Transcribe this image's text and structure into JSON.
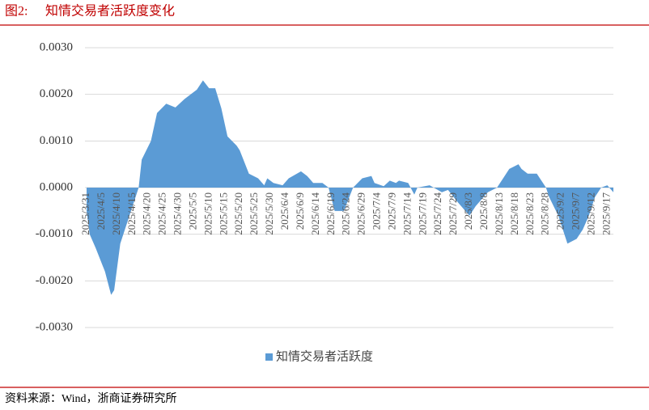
{
  "figure_label": "图2:",
  "source": "资料来源：Wind，浙商证券研究所",
  "chart_data": {
    "type": "area",
    "title": "知情交易者活跃度变化",
    "x": [
      "2025/3/31",
      "2025/4/1",
      "2025/4/3",
      "2025/4/6",
      "2025/4/8",
      "2025/4/9",
      "2025/4/11",
      "2025/4/14",
      "2025/4/17",
      "2025/4/18",
      "2025/4/21",
      "2025/4/23",
      "2025/4/26",
      "2025/4/29",
      "2025/5/2",
      "2025/5/6",
      "2025/5/8",
      "2025/5/10",
      "2025/5/12",
      "2025/5/14",
      "2025/5/16",
      "2025/5/19",
      "2025/5/20",
      "2025/5/23",
      "2025/5/26",
      "2025/5/28",
      "2025/5/29",
      "2025/5/31",
      "2025/6/3",
      "2025/6/5",
      "2025/6/9",
      "2025/6/11",
      "2025/6/13",
      "2025/6/16",
      "2025/6/18",
      "2025/6/20",
      "2025/6/23",
      "2025/6/26",
      "2025/6/29",
      "2025/7/2",
      "2025/7/3",
      "2025/7/6",
      "2025/7/8",
      "2025/7/10",
      "2025/7/11",
      "2025/7/14",
      "2025/7/16",
      "2025/7/17",
      "2025/7/21",
      "2025/7/25",
      "2025/7/27",
      "2025/7/30",
      "2025/8/3",
      "2025/8/5",
      "2025/8/9",
      "2025/8/12",
      "2025/8/14",
      "2025/8/16",
      "2025/8/19",
      "2025/8/20",
      "2025/8/22",
      "2025/8/25",
      "2025/8/27",
      "2025/8/28",
      "2025/8/29",
      "2025/9/1",
      "2025/9/4",
      "2025/9/7",
      "2025/9/9",
      "2025/9/11",
      "2025/9/13",
      "2025/9/15",
      "2025/9/17",
      "2025/9/19"
    ],
    "series": [
      {
        "name": "知情交易者活跃度",
        "color": "#5b9bd5",
        "values": [
          -0.0005,
          -0.001,
          -0.0013,
          -0.0018,
          -0.0023,
          -0.0022,
          -0.0012,
          -0.0006,
          0,
          0.0006,
          0.001,
          0.0016,
          0.0018,
          0.00172,
          0.0019,
          0.0021,
          0.0023,
          0.00213,
          0.00213,
          0.0017,
          0.0011,
          0.0009,
          0.0008,
          0.0003,
          0.0002,
          5e-05,
          0.0002,
          0.0001,
          5e-05,
          0.0002,
          0.00035,
          0.00025,
          0.0001,
          0.0001,
          0,
          -0.0005,
          -0.0005,
          0,
          0.0002,
          0.00025,
          0.0001,
          3e-05,
          0.00015,
          0.0001,
          0.00015,
          0.0001,
          -0.00015,
          0,
          5e-05,
          -0.0001,
          -5e-05,
          -0.0003,
          -0.0006,
          -0.0004,
          -0.0001,
          0,
          0.0002,
          0.0004,
          0.0005,
          0.0004,
          0.0003,
          0.0003,
          0.0001,
          0,
          -0.0002,
          -0.0006,
          -0.0012,
          -0.0011,
          -0.0009,
          -0.0006,
          -0.0002,
          0,
          5e-05,
          -0.0001
        ]
      }
    ],
    "xlim": [
      "2025/3/31",
      "2025/9/19"
    ],
    "xticks": [
      "2025/3/31",
      "2025/4/5",
      "2025/4/10",
      "2025/4/15",
      "2025/4/20",
      "2025/4/25",
      "2025/4/30",
      "2025/5/5",
      "2025/5/10",
      "2025/5/15",
      "2025/5/20",
      "2025/5/25",
      "2025/5/30",
      "2025/6/4",
      "2025/6/9",
      "2025/6/14",
      "2025/6/19",
      "2025/6/24",
      "2025/6/29",
      "2025/7/4",
      "2025/7/9",
      "2025/7/14",
      "2025/7/19",
      "2025/7/24",
      "2025/7/29",
      "2025/8/3",
      "2025/8/8",
      "2025/8/13",
      "2025/8/18",
      "2025/8/23",
      "2025/8/28",
      "2025/9/2",
      "2025/9/7",
      "2025/9/12",
      "2025/9/17"
    ],
    "ylim": [
      -0.003,
      0.003
    ],
    "yticks": [
      {
        "value": -0.003,
        "label": "-0.0030"
      },
      {
        "value": -0.002,
        "label": "-0.0020"
      },
      {
        "value": -0.001,
        "label": "-0.0010"
      },
      {
        "value": 0,
        "label": "0.0000"
      },
      {
        "value": 0.001,
        "label": "0.0010"
      },
      {
        "value": 0.002,
        "label": "0.0020"
      },
      {
        "value": 0.003,
        "label": "0.0030"
      }
    ],
    "grid": true
  }
}
